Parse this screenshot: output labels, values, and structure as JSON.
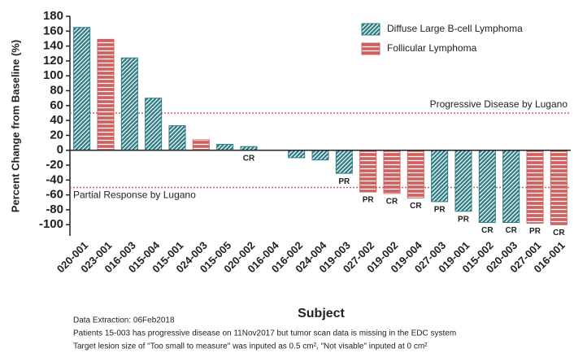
{
  "chart_data": {
    "type": "bar",
    "y_label": "Percent Change from Baseline (%)",
    "x_label": "Subject",
    "categories": [
      "020-001",
      "023-001",
      "016-003",
      "015-004",
      "015-001",
      "024-003",
      "015-005",
      "020-002",
      "016-004",
      "016-002",
      "024-004",
      "019-003",
      "027-002",
      "019-002",
      "019-004",
      "027-003",
      "019-001",
      "015-002",
      "020-003",
      "027-001",
      "016-001"
    ],
    "series": [
      {
        "name": "Diffuse Large B-cell Lymphoma",
        "color": "#2e7d86",
        "pattern": "diagonal",
        "values": [
          165,
          null,
          124,
          70,
          33,
          null,
          8,
          5,
          0,
          -10,
          -13,
          -31,
          null,
          null,
          null,
          -69,
          -82,
          -97,
          -97,
          null,
          null
        ]
      },
      {
        "name": "Follicular Lymphoma",
        "color": "#d0605e",
        "pattern": "horizontal",
        "values": [
          null,
          149,
          null,
          null,
          null,
          14,
          null,
          null,
          null,
          null,
          null,
          null,
          -56,
          -58,
          -64,
          null,
          null,
          null,
          null,
          -98,
          -100
        ]
      }
    ],
    "bar_labels": [
      null,
      null,
      null,
      null,
      null,
      null,
      null,
      "CR",
      null,
      null,
      null,
      "PR",
      "PR",
      "CR",
      "CR",
      "PR",
      "PR",
      "CR",
      "CR",
      "PR",
      "CR"
    ],
    "reference_lines": [
      {
        "value": 50,
        "label": "Progressive Disease by Lugano",
        "color": "#d0605e"
      },
      {
        "value": -50,
        "label": "Partial Response by Lugano",
        "color": "#d0605e"
      }
    ],
    "ylim": [
      -115,
      180
    ],
    "yticks": [
      -100,
      -80,
      -60,
      -40,
      -20,
      0,
      20,
      40,
      60,
      80,
      100,
      120,
      140,
      160,
      180
    ],
    "legend": "upper right",
    "notes": [
      "Data Extraction: 06Feb2018",
      "Patients 15-003 has progressive disease on 11Nov2017 but tumor scan data is missing in the EDC system",
      "Target lesion size of \"Too small to measure\" was inputed as 0.5 cm², \"Not visable\" inputed at 0 cm²"
    ]
  }
}
